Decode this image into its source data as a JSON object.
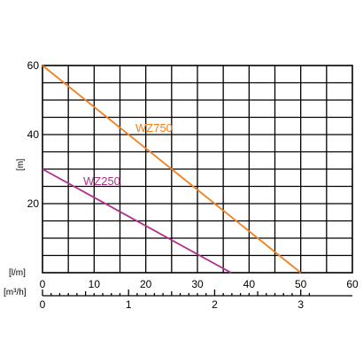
{
  "chart_data": {
    "type": "line",
    "ylabel": "[m]",
    "xlabel": "[l/m]",
    "x2label": "[m³/h]",
    "xlim": [
      0,
      60
    ],
    "ylim": [
      0,
      60
    ],
    "x_ticks": [
      "0",
      "10",
      "20",
      "30",
      "40",
      "50",
      "60"
    ],
    "x2_ticks": [
      "0",
      "1",
      "2",
      "3"
    ],
    "y_ticks": [
      "20",
      "40",
      "60"
    ],
    "grid": true,
    "series": [
      {
        "name": "WZ750",
        "color": "#f08020",
        "x": [
          0,
          50
        ],
        "y": [
          60,
          0
        ]
      },
      {
        "name": "WZ250",
        "color": "#b0308a",
        "x": [
          0,
          36.5
        ],
        "y": [
          30,
          0
        ]
      }
    ]
  }
}
